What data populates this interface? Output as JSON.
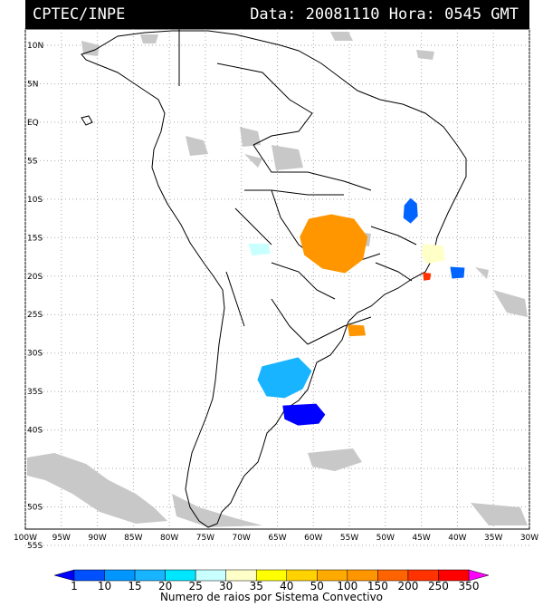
{
  "header": {
    "agency": "CPTEC/INPE",
    "datetime": "Data: 20081110 Hora: 0545 GMT"
  },
  "map": {
    "lat_labels": [
      "10N",
      "5N",
      "EQ",
      "5S",
      "10S",
      "15S",
      "20S",
      "25S",
      "30S",
      "35S",
      "40S",
      "45S",
      "50S",
      "55S"
    ],
    "lon_labels": [
      "100W",
      "95W",
      "90W",
      "85W",
      "80W",
      "75W",
      "70W",
      "65W",
      "60W",
      "55W",
      "50W",
      "45W",
      "40W",
      "35W",
      "30W"
    ],
    "lat_range": [
      10,
      -55
    ],
    "lon_range": [
      -100,
      -30
    ],
    "grid": "dotted"
  },
  "colorbar": {
    "title": "Numero de raios por Sistema Convectivo",
    "levels": [
      "1",
      "10",
      "15",
      "20",
      "25",
      "30",
      "35",
      "40",
      "50",
      "100",
      "150",
      "200",
      "250",
      "350"
    ],
    "colors": [
      "#0000ff",
      "#0050ff",
      "#0096ff",
      "#19b4ff",
      "#00e6ff",
      "#c8ffff",
      "#ffffc8",
      "#ffff00",
      "#ffd200",
      "#ffaa00",
      "#ff9600",
      "#ff6400",
      "#ff3200",
      "#ff0000",
      "#ff00ff"
    ]
  },
  "storms": [
    {
      "name": "central-brazil",
      "lon": -57.5,
      "lat": -15.5,
      "color": "#ff9600"
    },
    {
      "name": "east-brazil",
      "lon": -46.5,
      "lat": -11.5,
      "color": "#0064ff"
    },
    {
      "name": "southeast-brazil",
      "lon": -43.5,
      "lat": -17,
      "color": "#ffffc8"
    },
    {
      "name": "southeast-coast",
      "lon": -40,
      "lat": -19.5,
      "color": "#0064ff"
    },
    {
      "name": "southeast-red",
      "lon": -44.3,
      "lat": -20,
      "color": "#ff3200"
    },
    {
      "name": "bolivia",
      "lon": -67.5,
      "lat": -16.5,
      "color": "#c8ffff"
    },
    {
      "name": "argentina-north",
      "lon": -64,
      "lat": -33.5,
      "color": "#19b4ff"
    },
    {
      "name": "argentina-south",
      "lon": -61.5,
      "lat": -38,
      "color": "#0000ff"
    },
    {
      "name": "paraguay-east",
      "lon": -54,
      "lat": -27,
      "color": "#ff9600"
    }
  ]
}
